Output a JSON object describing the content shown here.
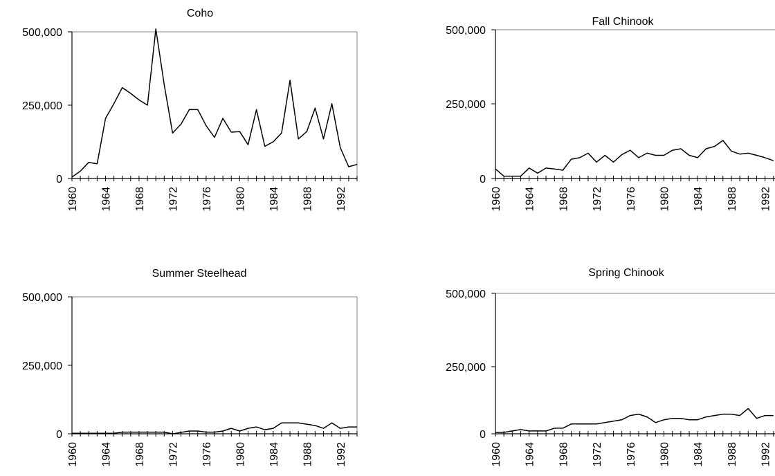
{
  "chart_data": [
    {
      "type": "line",
      "title": "Coho",
      "ylim": [
        0,
        500000
      ],
      "yticks": [
        0,
        250000,
        500000
      ],
      "ytick_labels": [
        "0",
        "250,000",
        "500,000"
      ],
      "xlim": [
        1960,
        1994
      ],
      "xticks_labeled": [
        1960,
        1964,
        1968,
        1972,
        1976,
        1980,
        1984,
        1988,
        1992
      ],
      "grid": false,
      "x": [
        1960,
        1961,
        1962,
        1963,
        1964,
        1965,
        1966,
        1967,
        1968,
        1969,
        1970,
        1971,
        1972,
        1973,
        1974,
        1975,
        1976,
        1977,
        1978,
        1979,
        1980,
        1981,
        1982,
        1983,
        1984,
        1985,
        1986,
        1987,
        1988,
        1989,
        1990,
        1991,
        1992,
        1993,
        1994
      ],
      "values": [
        5000,
        25000,
        55000,
        50000,
        205000,
        255000,
        310000,
        290000,
        268000,
        250000,
        510000,
        320000,
        155000,
        185000,
        235000,
        235000,
        180000,
        140000,
        205000,
        158000,
        160000,
        115000,
        235000,
        110000,
        125000,
        155000,
        335000,
        135000,
        160000,
        240000,
        135000,
        255000,
        105000,
        40000,
        48000
      ]
    },
    {
      "type": "line",
      "title": "Fall Chinook",
      "ylim": [
        0,
        500000
      ],
      "yticks": [
        0,
        250000,
        500000
      ],
      "ytick_labels": [
        "0",
        "250,000",
        "500,000"
      ],
      "xlim": [
        1960,
        1994
      ],
      "xticks_labeled": [
        1960,
        1964,
        1968,
        1972,
        1976,
        1980,
        1984,
        1988,
        1992
      ],
      "grid": false,
      "x": [
        1960,
        1961,
        1962,
        1963,
        1964,
        1965,
        1966,
        1967,
        1968,
        1969,
        1970,
        1971,
        1972,
        1973,
        1974,
        1975,
        1976,
        1977,
        1978,
        1979,
        1980,
        1981,
        1982,
        1983,
        1984,
        1985,
        1986,
        1987,
        1988,
        1989,
        1990,
        1991,
        1992,
        1993
      ],
      "values": [
        32000,
        8000,
        8000,
        8000,
        35000,
        18000,
        35000,
        32000,
        28000,
        65000,
        70000,
        85000,
        55000,
        78000,
        55000,
        80000,
        95000,
        70000,
        85000,
        78000,
        78000,
        95000,
        100000,
        78000,
        70000,
        100000,
        108000,
        128000,
        92000,
        82000,
        85000,
        78000,
        70000,
        60000
      ]
    },
    {
      "type": "line",
      "title": "Summer Steelhead",
      "ylim": [
        0,
        500000
      ],
      "yticks": [
        0,
        250000,
        500000
      ],
      "ytick_labels": [
        "0",
        "250,000",
        "500,000"
      ],
      "xlim": [
        1960,
        1994
      ],
      "xticks_labeled": [
        1960,
        1964,
        1968,
        1972,
        1976,
        1980,
        1984,
        1988,
        1992
      ],
      "grid": false,
      "x": [
        1960,
        1961,
        1962,
        1963,
        1964,
        1965,
        1966,
        1967,
        1968,
        1969,
        1970,
        1971,
        1972,
        1973,
        1974,
        1975,
        1976,
        1977,
        1978,
        1979,
        1980,
        1981,
        1982,
        1983,
        1984,
        1985,
        1986,
        1987,
        1988,
        1989,
        1990,
        1991,
        1992,
        1993,
        1994
      ],
      "values": [
        2000,
        2000,
        2000,
        2000,
        2000,
        2000,
        6000,
        6000,
        6000,
        6000,
        6000,
        6000,
        0,
        5000,
        10000,
        10000,
        6000,
        6000,
        10000,
        20000,
        10000,
        20000,
        25000,
        15000,
        20000,
        40000,
        40000,
        40000,
        35000,
        30000,
        20000,
        40000,
        20000,
        25000,
        25000
      ]
    },
    {
      "type": "line",
      "title": "Spring Chinook",
      "ylim": [
        0,
        500000
      ],
      "yticks": [
        0,
        250000,
        500000
      ],
      "ytick_labels": [
        "0",
        "250,000",
        "500,000"
      ],
      "xlim": [
        1960,
        1994
      ],
      "xticks_labeled": [
        1960,
        1964,
        1968,
        1972,
        1976,
        1980,
        1984,
        1988,
        1992
      ],
      "grid": false,
      "x": [
        1960,
        1961,
        1962,
        1963,
        1964,
        1965,
        1966,
        1967,
        1968,
        1969,
        1970,
        1971,
        1972,
        1973,
        1974,
        1975,
        1976,
        1977,
        1978,
        1979,
        1980,
        1981,
        1982,
        1983,
        1984,
        1985,
        1986,
        1987,
        1988,
        1989,
        1990,
        1991,
        1992,
        1993
      ],
      "values": [
        5000,
        5000,
        10000,
        15000,
        10000,
        10000,
        10000,
        20000,
        20000,
        35000,
        35000,
        35000,
        35000,
        40000,
        45000,
        50000,
        65000,
        70000,
        60000,
        40000,
        50000,
        55000,
        55000,
        50000,
        50000,
        60000,
        65000,
        70000,
        70000,
        65000,
        90000,
        55000,
        65000,
        65000
      ]
    }
  ]
}
